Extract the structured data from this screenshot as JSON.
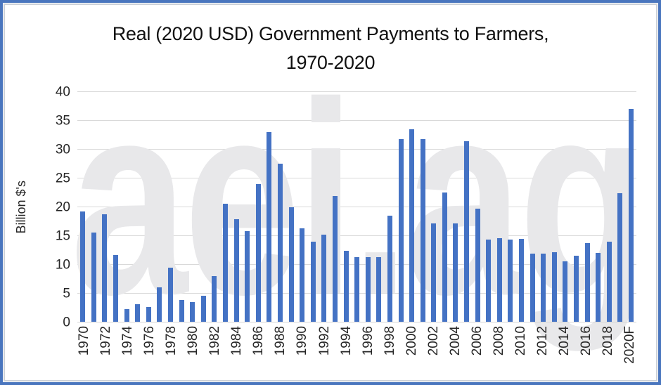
{
  "title": {
    "line1": "Real (2020 USD) Government Payments to Farmers,",
    "line2": "1970-2020"
  },
  "watermark": {
    "text": "aei.ag",
    "color": "#e8e8ea"
  },
  "frame": {
    "outer_border_color": "#4a76be",
    "inner_border_color": "#ccd1d8"
  },
  "chart_data": {
    "type": "bar",
    "title": "Real (2020 USD) Government Payments to Farmers, 1970-2020",
    "xlabel": "",
    "ylabel": "Billion $'s",
    "ylim": [
      0,
      40
    ],
    "yticks": [
      0,
      5,
      10,
      15,
      20,
      25,
      30,
      35,
      40
    ],
    "grid": true,
    "gridline_color": "#d9d9d9",
    "bar_color": "#4472c4",
    "legend": "none",
    "x_label_every": 2,
    "x_tick_labels_shown": [
      "1970",
      "1972",
      "1974",
      "1976",
      "1978",
      "1980",
      "1982",
      "1984",
      "1986",
      "1988",
      "1990",
      "1992",
      "1994",
      "1996",
      "1998",
      "2000",
      "2002",
      "2004",
      "2006",
      "2008",
      "2010",
      "2012",
      "2014",
      "2016",
      "2018",
      "2020F"
    ],
    "categories": [
      "1970",
      "1971",
      "1972",
      "1973",
      "1974",
      "1975",
      "1976",
      "1977",
      "1978",
      "1979",
      "1980",
      "1981",
      "1982",
      "1983",
      "1984",
      "1985",
      "1986",
      "1987",
      "1988",
      "1989",
      "1990",
      "1991",
      "1992",
      "1993",
      "1994",
      "1995",
      "1996",
      "1997",
      "1998",
      "1999",
      "2000",
      "2001",
      "2002",
      "2003",
      "2004",
      "2005",
      "2006",
      "2007",
      "2008",
      "2009",
      "2010",
      "2011",
      "2012",
      "2013",
      "2014",
      "2015",
      "2016",
      "2017",
      "2018",
      "2019",
      "2020F"
    ],
    "values": [
      19.3,
      15.6,
      18.8,
      11.7,
      2.3,
      3.2,
      2.7,
      6.1,
      9.5,
      3.9,
      3.5,
      4.6,
      8.0,
      20.6,
      17.9,
      15.9,
      24.0,
      33.1,
      27.6,
      20.0,
      16.4,
      14.0,
      15.3,
      21.9,
      12.5,
      11.4,
      11.3,
      11.3,
      18.5,
      31.8,
      33.5,
      31.8,
      17.2,
      22.6,
      17.2,
      31.5,
      19.8,
      14.4,
      14.6,
      14.4,
      14.5,
      12.0,
      12.0,
      12.2,
      10.6,
      11.6,
      13.8,
      12.1,
      14.0,
      22.5,
      37.1
    ]
  }
}
